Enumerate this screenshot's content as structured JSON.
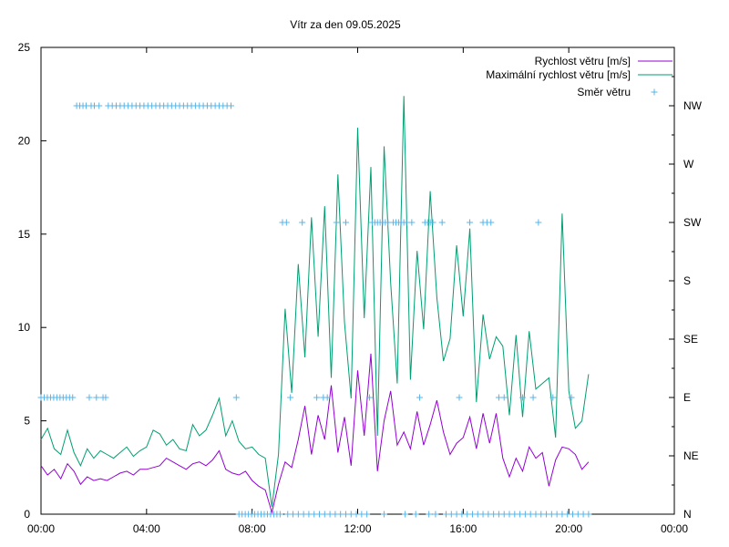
{
  "chart_data": {
    "type": "line",
    "title": "Vítr za den 09.05.2025",
    "x_axis": {
      "min_hours": 0,
      "max_hours": 24,
      "tick_labels": [
        "00:00",
        "04:00",
        "08:00",
        "12:00",
        "16:00",
        "20:00",
        "00:00"
      ]
    },
    "y_left": {
      "min": 0,
      "max": 25,
      "tick_labels": [
        "0",
        "5",
        "10",
        "15",
        "20",
        "25"
      ]
    },
    "y_right": {
      "direction_labels": [
        "N",
        "NE",
        "E",
        "SE",
        "S",
        "SW",
        "W",
        "NW"
      ]
    },
    "legend": {
      "placement": "top-right",
      "items": [
        {
          "label": "Rychlost větru [m/s]",
          "color": "#9400d3",
          "style": "line"
        },
        {
          "label": "Maximální rychlost větru [m/s]",
          "color": "#009e73",
          "style": "line"
        },
        {
          "label": "Směr větru",
          "color": "#56b4e9",
          "style": "points"
        }
      ]
    },
    "series": [
      {
        "name": "Rychlost větru [m/s]",
        "color": "#9400d3",
        "x_hours": [
          0,
          0.25,
          0.5,
          0.75,
          1,
          1.25,
          1.5,
          1.75,
          2,
          2.25,
          2.5,
          2.75,
          3,
          3.25,
          3.5,
          3.75,
          4,
          4.25,
          4.5,
          4.75,
          5,
          5.25,
          5.5,
          5.75,
          6,
          6.25,
          6.5,
          6.75,
          7,
          7.25,
          7.5,
          7.75,
          8,
          8.25,
          8.5,
          8.75,
          9,
          9.25,
          9.5,
          9.75,
          10,
          10.25,
          10.5,
          10.75,
          11,
          11.25,
          11.5,
          11.75,
          12,
          12.25,
          12.5,
          12.75,
          13,
          13.25,
          13.5,
          13.75,
          14,
          14.25,
          14.5,
          14.75,
          15,
          15.25,
          15.5,
          15.75,
          16,
          16.25,
          16.5,
          16.75,
          17,
          17.25,
          17.5,
          17.75,
          18,
          18.25,
          18.5,
          18.75,
          19,
          19.25,
          19.5,
          19.75,
          20,
          20.25,
          20.5,
          20.75
        ],
        "values": [
          2.6,
          2.1,
          2.4,
          1.9,
          2.7,
          2.3,
          1.6,
          2.0,
          1.8,
          1.9,
          1.8,
          2.0,
          2.2,
          2.3,
          2.1,
          2.4,
          2.4,
          2.5,
          2.6,
          3.0,
          2.8,
          2.6,
          2.4,
          2.7,
          2.8,
          2.6,
          2.9,
          3.4,
          2.4,
          2.2,
          2.1,
          2.3,
          1.8,
          1.5,
          1.3,
          0.1,
          1.6,
          2.8,
          2.5,
          4.0,
          5.8,
          3.2,
          5.3,
          4.0,
          6.9,
          3.3,
          5.2,
          2.6,
          7.7,
          4.2,
          8.6,
          2.3,
          5.0,
          6.6,
          3.7,
          4.4,
          3.5,
          5.5,
          3.7,
          4.8,
          6.1,
          4.4,
          3.2,
          3.8,
          4.1,
          5.2,
          3.5,
          5.4,
          3.8,
          5.4,
          3.0,
          2.0,
          3.0,
          2.3,
          3.6,
          3.0,
          3.3,
          1.5,
          2.9,
          3.6,
          3.5,
          3.2,
          2.4,
          2.8
        ]
      },
      {
        "name": "Maximální rychlost větru [m/s]",
        "color": "#009e73",
        "x_hours": [
          0,
          0.25,
          0.5,
          0.75,
          1,
          1.25,
          1.5,
          1.75,
          2,
          2.25,
          2.5,
          2.75,
          3,
          3.25,
          3.5,
          3.75,
          4,
          4.25,
          4.5,
          4.75,
          5,
          5.25,
          5.5,
          5.75,
          6,
          6.25,
          6.5,
          6.75,
          7,
          7.25,
          7.5,
          7.75,
          8,
          8.25,
          8.5,
          8.75,
          9,
          9.25,
          9.5,
          9.75,
          10,
          10.25,
          10.5,
          10.75,
          11,
          11.25,
          11.5,
          11.75,
          12,
          12.25,
          12.5,
          12.75,
          13,
          13.25,
          13.5,
          13.75,
          14,
          14.25,
          14.5,
          14.75,
          15,
          15.25,
          15.5,
          15.75,
          16,
          16.25,
          16.5,
          16.75,
          17,
          17.25,
          17.5,
          17.75,
          18,
          18.25,
          18.5,
          18.75,
          19,
          19.25,
          19.5,
          19.75,
          20,
          20.25,
          20.5,
          20.75
        ],
        "values": [
          4.0,
          4.6,
          3.5,
          3.2,
          4.5,
          3.3,
          2.6,
          3.5,
          3.0,
          3.4,
          3.2,
          3.0,
          3.3,
          3.6,
          3.1,
          3.4,
          3.6,
          4.5,
          4.3,
          3.7,
          4.0,
          3.5,
          3.4,
          4.8,
          4.2,
          4.5,
          5.3,
          6.2,
          4.2,
          5.0,
          3.9,
          3.5,
          3.6,
          3.2,
          3.0,
          0.4,
          3.2,
          11.0,
          6.5,
          13.4,
          8.4,
          15.9,
          9.5,
          16.5,
          7.3,
          18.2,
          10.3,
          6.2,
          20.7,
          10.5,
          18.6,
          4.2,
          19.7,
          12.4,
          7.0,
          22.4,
          7.2,
          14.1,
          9.9,
          17.3,
          11.6,
          8.2,
          9.4,
          14.4,
          10.6,
          15.3,
          6.0,
          10.7,
          8.3,
          9.5,
          9.0,
          5.3,
          9.6,
          5.2,
          9.8,
          6.7,
          7.0,
          7.3,
          4.1,
          16.1,
          6.6,
          4.6,
          5.0,
          7.5
        ]
      },
      {
        "name": "Směr větru",
        "color": "#56b4e9",
        "marker": "plus",
        "points": [
          {
            "x": 0.0,
            "dir": "E"
          },
          {
            "x": 0.12,
            "dir": "E"
          },
          {
            "x": 0.24,
            "dir": "E"
          },
          {
            "x": 0.36,
            "dir": "E"
          },
          {
            "x": 0.48,
            "dir": "E"
          },
          {
            "x": 0.6,
            "dir": "E"
          },
          {
            "x": 0.72,
            "dir": "E"
          },
          {
            "x": 0.84,
            "dir": "E"
          },
          {
            "x": 0.96,
            "dir": "E"
          },
          {
            "x": 1.08,
            "dir": "E"
          },
          {
            "x": 1.2,
            "dir": "E"
          },
          {
            "x": 1.35,
            "dir": "NW"
          },
          {
            "x": 1.47,
            "dir": "NW"
          },
          {
            "x": 1.59,
            "dir": "NW"
          },
          {
            "x": 1.71,
            "dir": "NW"
          },
          {
            "x": 1.83,
            "dir": "E"
          },
          {
            "x": 1.9,
            "dir": "NW"
          },
          {
            "x": 2.02,
            "dir": "NW"
          },
          {
            "x": 2.1,
            "dir": "E"
          },
          {
            "x": 2.2,
            "dir": "NW"
          },
          {
            "x": 2.35,
            "dir": "E"
          },
          {
            "x": 2.45,
            "dir": "E"
          },
          {
            "x": 2.55,
            "dir": "NW"
          },
          {
            "x": 2.7,
            "dir": "NW"
          },
          {
            "x": 2.85,
            "dir": "NW"
          },
          {
            "x": 3.0,
            "dir": "NW"
          },
          {
            "x": 3.15,
            "dir": "NW"
          },
          {
            "x": 3.3,
            "dir": "NW"
          },
          {
            "x": 3.45,
            "dir": "NW"
          },
          {
            "x": 3.6,
            "dir": "NW"
          },
          {
            "x": 3.75,
            "dir": "NW"
          },
          {
            "x": 3.9,
            "dir": "NW"
          },
          {
            "x": 4.05,
            "dir": "NW"
          },
          {
            "x": 4.2,
            "dir": "NW"
          },
          {
            "x": 4.35,
            "dir": "NW"
          },
          {
            "x": 4.5,
            "dir": "NW"
          },
          {
            "x": 4.65,
            "dir": "NW"
          },
          {
            "x": 4.8,
            "dir": "NW"
          },
          {
            "x": 4.95,
            "dir": "NW"
          },
          {
            "x": 5.1,
            "dir": "NW"
          },
          {
            "x": 5.25,
            "dir": "NW"
          },
          {
            "x": 5.4,
            "dir": "NW"
          },
          {
            "x": 5.55,
            "dir": "NW"
          },
          {
            "x": 5.7,
            "dir": "NW"
          },
          {
            "x": 5.85,
            "dir": "NW"
          },
          {
            "x": 6.0,
            "dir": "NW"
          },
          {
            "x": 6.15,
            "dir": "NW"
          },
          {
            "x": 6.3,
            "dir": "NW"
          },
          {
            "x": 6.45,
            "dir": "NW"
          },
          {
            "x": 6.6,
            "dir": "NW"
          },
          {
            "x": 6.75,
            "dir": "NW"
          },
          {
            "x": 6.9,
            "dir": "NW"
          },
          {
            "x": 7.05,
            "dir": "NW"
          },
          {
            "x": 7.2,
            "dir": "NW"
          },
          {
            "x": 7.4,
            "dir": "E"
          },
          {
            "x": 7.5,
            "dir": "N"
          },
          {
            "x": 7.62,
            "dir": "N"
          },
          {
            "x": 7.74,
            "dir": "N"
          },
          {
            "x": 7.86,
            "dir": "N"
          },
          {
            "x": 7.98,
            "dir": "N"
          },
          {
            "x": 8.1,
            "dir": "N"
          },
          {
            "x": 8.22,
            "dir": "N"
          },
          {
            "x": 8.34,
            "dir": "N"
          },
          {
            "x": 8.46,
            "dir": "N"
          },
          {
            "x": 8.58,
            "dir": "N"
          },
          {
            "x": 8.7,
            "dir": "N"
          },
          {
            "x": 8.82,
            "dir": "N"
          },
          {
            "x": 8.94,
            "dir": "N"
          },
          {
            "x": 9.06,
            "dir": "N"
          },
          {
            "x": 9.15,
            "dir": "SW"
          },
          {
            "x": 9.3,
            "dir": "SW"
          },
          {
            "x": 9.35,
            "dir": "N"
          },
          {
            "x": 9.45,
            "dir": "E"
          },
          {
            "x": 9.55,
            "dir": "N"
          },
          {
            "x": 9.75,
            "dir": "N"
          },
          {
            "x": 9.9,
            "dir": "SW"
          },
          {
            "x": 9.95,
            "dir": "N"
          },
          {
            "x": 10.15,
            "dir": "N"
          },
          {
            "x": 10.35,
            "dir": "N"
          },
          {
            "x": 10.45,
            "dir": "E"
          },
          {
            "x": 10.55,
            "dir": "N"
          },
          {
            "x": 10.7,
            "dir": "E"
          },
          {
            "x": 10.75,
            "dir": "N"
          },
          {
            "x": 10.85,
            "dir": "E"
          },
          {
            "x": 10.95,
            "dir": "N"
          },
          {
            "x": 11.15,
            "dir": "N"
          },
          {
            "x": 11.2,
            "dir": "SW"
          },
          {
            "x": 11.35,
            "dir": "N"
          },
          {
            "x": 11.55,
            "dir": "SW"
          },
          {
            "x": 11.55,
            "dir": "N"
          },
          {
            "x": 11.75,
            "dir": "N"
          },
          {
            "x": 11.95,
            "dir": "N"
          },
          {
            "x": 12.15,
            "dir": "N"
          },
          {
            "x": 12.35,
            "dir": "N"
          },
          {
            "x": 12.45,
            "dir": "E"
          },
          {
            "x": 12.55,
            "dir": "SW"
          },
          {
            "x": 12.65,
            "dir": "SW"
          },
          {
            "x": 12.75,
            "dir": "SW"
          },
          {
            "x": 12.85,
            "dir": "SW"
          },
          {
            "x": 12.95,
            "dir": "SW"
          },
          {
            "x": 13.0,
            "dir": "N"
          },
          {
            "x": 13.05,
            "dir": "SW"
          },
          {
            "x": 13.15,
            "dir": "SW"
          },
          {
            "x": 13.35,
            "dir": "SW"
          },
          {
            "x": 13.45,
            "dir": "SW"
          },
          {
            "x": 13.55,
            "dir": "SW"
          },
          {
            "x": 13.65,
            "dir": "SW"
          },
          {
            "x": 13.75,
            "dir": "SW"
          },
          {
            "x": 13.8,
            "dir": "N"
          },
          {
            "x": 13.85,
            "dir": "SW"
          },
          {
            "x": 14.05,
            "dir": "SW"
          },
          {
            "x": 14.2,
            "dir": "N"
          },
          {
            "x": 14.35,
            "dir": "E"
          },
          {
            "x": 14.55,
            "dir": "SW"
          },
          {
            "x": 14.65,
            "dir": "SW"
          },
          {
            "x": 14.7,
            "dir": "N"
          },
          {
            "x": 14.75,
            "dir": "SW"
          },
          {
            "x": 14.85,
            "dir": "SW"
          },
          {
            "x": 14.95,
            "dir": "N"
          },
          {
            "x": 15.2,
            "dir": "SW"
          },
          {
            "x": 15.35,
            "dir": "N"
          },
          {
            "x": 15.55,
            "dir": "N"
          },
          {
            "x": 15.75,
            "dir": "N"
          },
          {
            "x": 15.85,
            "dir": "E"
          },
          {
            "x": 15.95,
            "dir": "N"
          },
          {
            "x": 16.15,
            "dir": "N"
          },
          {
            "x": 16.25,
            "dir": "SW"
          },
          {
            "x": 16.35,
            "dir": "N"
          },
          {
            "x": 16.55,
            "dir": "N"
          },
          {
            "x": 16.75,
            "dir": "SW"
          },
          {
            "x": 16.75,
            "dir": "N"
          },
          {
            "x": 16.9,
            "dir": "SW"
          },
          {
            "x": 16.95,
            "dir": "N"
          },
          {
            "x": 17.05,
            "dir": "SW"
          },
          {
            "x": 17.15,
            "dir": "N"
          },
          {
            "x": 17.35,
            "dir": "E"
          },
          {
            "x": 17.35,
            "dir": "N"
          },
          {
            "x": 17.55,
            "dir": "E"
          },
          {
            "x": 17.55,
            "dir": "N"
          },
          {
            "x": 17.75,
            "dir": "N"
          },
          {
            "x": 17.95,
            "dir": "N"
          },
          {
            "x": 18.15,
            "dir": "N"
          },
          {
            "x": 18.25,
            "dir": "E"
          },
          {
            "x": 18.35,
            "dir": "N"
          },
          {
            "x": 18.55,
            "dir": "N"
          },
          {
            "x": 18.65,
            "dir": "E"
          },
          {
            "x": 18.75,
            "dir": "N"
          },
          {
            "x": 18.85,
            "dir": "SW"
          },
          {
            "x": 18.95,
            "dir": "N"
          },
          {
            "x": 19.15,
            "dir": "N"
          },
          {
            "x": 19.35,
            "dir": "N"
          },
          {
            "x": 19.4,
            "dir": "E"
          },
          {
            "x": 19.55,
            "dir": "N"
          },
          {
            "x": 19.75,
            "dir": "N"
          },
          {
            "x": 19.95,
            "dir": "N"
          },
          {
            "x": 20.1,
            "dir": "E"
          },
          {
            "x": 20.15,
            "dir": "N"
          },
          {
            "x": 20.35,
            "dir": "N"
          },
          {
            "x": 20.55,
            "dir": "N"
          },
          {
            "x": 20.75,
            "dir": "N"
          }
        ]
      }
    ],
    "grid": false
  }
}
